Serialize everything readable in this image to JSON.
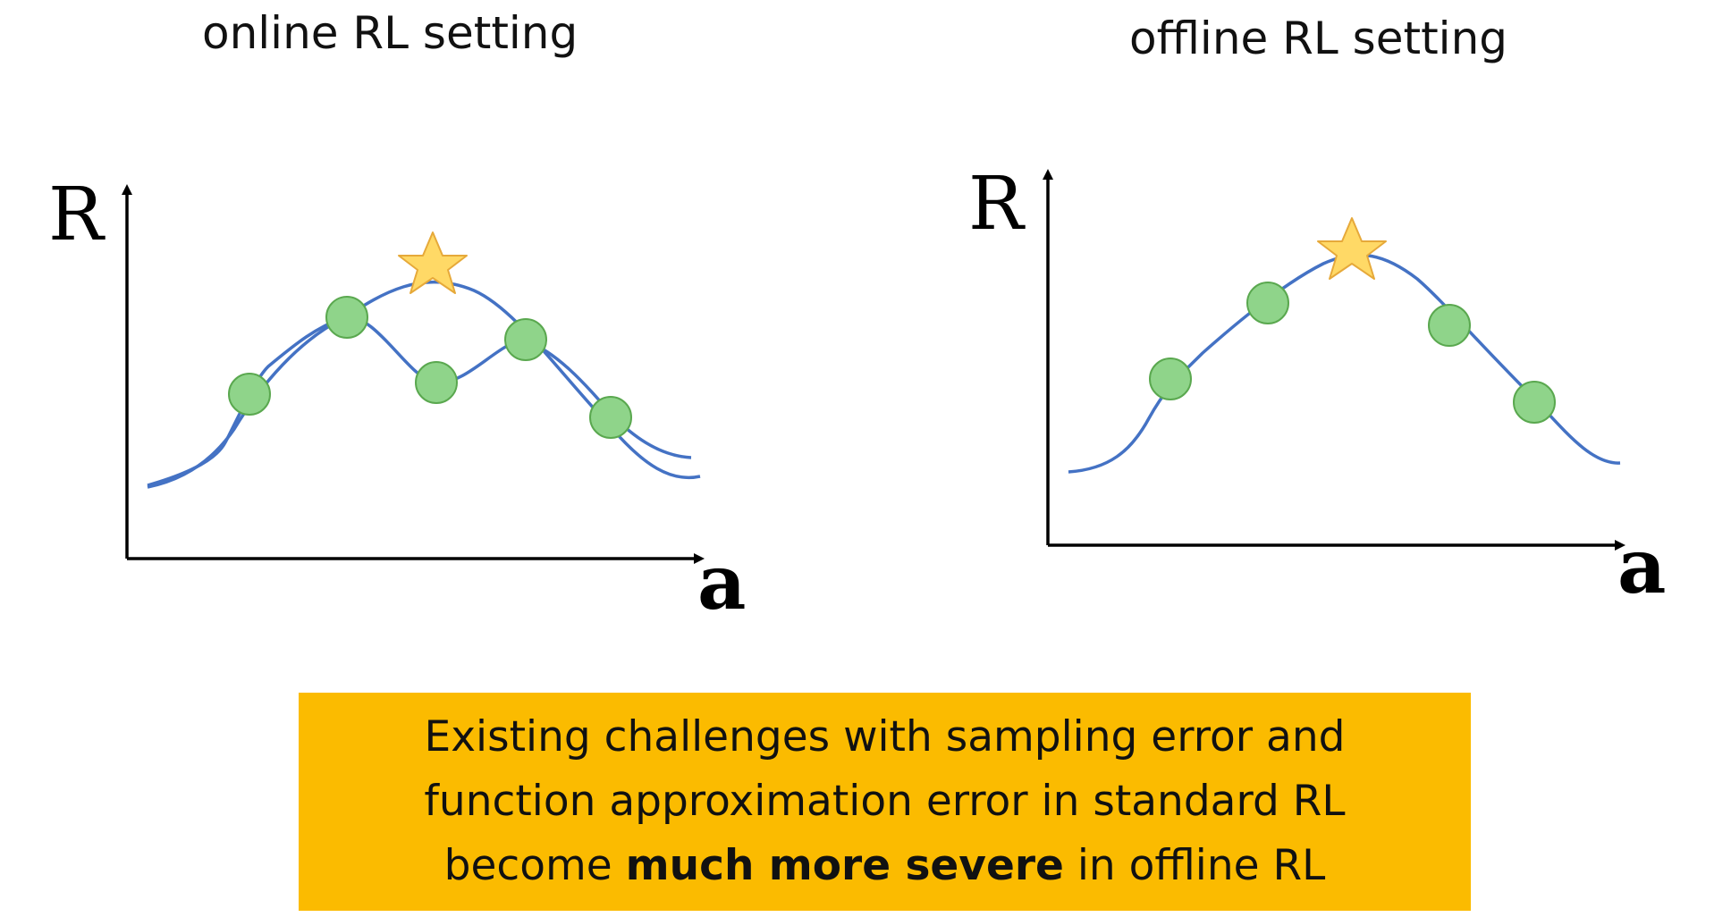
{
  "panels": {
    "online": {
      "title": "online RL setting",
      "y_axis_label": "R",
      "x_axis_label": "a"
    },
    "offline": {
      "title": "offline RL setting",
      "y_axis_label": "R",
      "x_axis_label": "a"
    }
  },
  "banner": {
    "line1": "Existing challenges with sampling error and",
    "line2": "function approximation error in standard RL",
    "line3_prefix": "become ",
    "line3_emphasis": "much more severe",
    "line3_suffix": " in offline RL"
  },
  "colors": {
    "curve": "#4472c4",
    "sample_point": "#8fd48a",
    "sample_point_outline": "#5aa84f",
    "optimum_star": "#ffd966",
    "optimum_star_outline": "#e6a93a",
    "axis": "#000000",
    "banner_background": "#fbbb00"
  },
  "icons": {
    "optimum": "star-icon",
    "sample": "circle-marker"
  }
}
